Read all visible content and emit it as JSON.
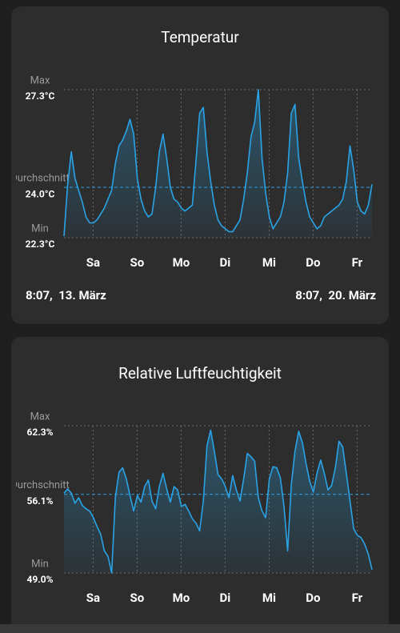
{
  "chart_data": [
    {
      "type": "line",
      "title": "Temperatur",
      "color": "#29a3e6",
      "start_label": "8:07,  13. März",
      "end_label": "8:07,  20. März",
      "xlim": [
        0,
        84
      ],
      "xticks": [
        {
          "value": 7.94,
          "label": "Sa"
        },
        {
          "value": 19.94,
          "label": "So"
        },
        {
          "value": 31.94,
          "label": "Mo"
        },
        {
          "value": 43.94,
          "label": "Di"
        },
        {
          "value": 55.94,
          "label": "Mi"
        },
        {
          "value": 67.94,
          "label": "Do"
        },
        {
          "value": 79.94,
          "label": "Fr"
        }
      ],
      "ylim": [
        22.3,
        27.3
      ],
      "yticks": [
        {
          "value": 22.3,
          "label": "22.3°C"
        },
        {
          "value": 24.0,
          "label": "24.0°C"
        },
        {
          "value": 27.3,
          "label": "27.3°C"
        }
      ],
      "ytick_names": [
        "Min",
        "Durchschnitt",
        "Max"
      ],
      "values": [
        22.35,
        24.1,
        25.2,
        24.3,
        23.9,
        23.5,
        23.0,
        22.8,
        22.8,
        22.9,
        23.1,
        23.3,
        23.6,
        23.9,
        24.8,
        25.4,
        25.6,
        25.9,
        26.3,
        25.8,
        24.3,
        23.6,
        23.2,
        23.0,
        23.1,
        24.0,
        25.2,
        25.8,
        25.0,
        24.0,
        23.6,
        23.5,
        23.3,
        23.2,
        23.3,
        23.4,
        24.9,
        26.5,
        26.7,
        25.2,
        24.2,
        23.4,
        22.9,
        22.7,
        22.6,
        22.5,
        22.5,
        22.7,
        22.9,
        23.6,
        24.5,
        25.7,
        26.2,
        27.3,
        25.0,
        23.8,
        23.0,
        22.6,
        22.8,
        23.0,
        23.5,
        24.5,
        26.5,
        26.8,
        25.0,
        24.2,
        23.5,
        23.0,
        22.8,
        22.6,
        22.7,
        23.0,
        23.1,
        23.2,
        23.3,
        23.4,
        23.6,
        24.2,
        25.4,
        24.6,
        23.5,
        23.2,
        23.1,
        23.4,
        24.1
      ]
    },
    {
      "type": "line",
      "title": "Relative Luftfeuchtigkeit",
      "color": "#29a3e6",
      "xlim": [
        0,
        84
      ],
      "xticks": [
        {
          "value": 7.94,
          "label": "Sa"
        },
        {
          "value": 19.94,
          "label": "So"
        },
        {
          "value": 31.94,
          "label": "Mo"
        },
        {
          "value": 43.94,
          "label": "Di"
        },
        {
          "value": 55.94,
          "label": "Mi"
        },
        {
          "value": 67.94,
          "label": "Do"
        },
        {
          "value": 79.94,
          "label": "Fr"
        }
      ],
      "ylim": [
        49.0,
        62.3
      ],
      "yticks": [
        {
          "value": 49.0,
          "label": "49.0%"
        },
        {
          "value": 56.1,
          "label": "56.1%"
        },
        {
          "value": 62.3,
          "label": "62.3%"
        }
      ],
      "ytick_names": [
        "Min",
        "Durchschnitt",
        "Max"
      ],
      "values": [
        56.2,
        56.6,
        56.2,
        55.3,
        55.8,
        55.1,
        54.8,
        54.6,
        54.0,
        53.2,
        52.5,
        51.0,
        50.5,
        49.0,
        55.8,
        58.1,
        58.5,
        57.5,
        56.0,
        54.6,
        56.0,
        55.4,
        56.8,
        57.4,
        55.5,
        54.8,
        56.8,
        58.0,
        56.6,
        55.4,
        56.8,
        56.5,
        55.0,
        55.2,
        54.6,
        53.9,
        53.5,
        52.8,
        55.5,
        60.5,
        61.9,
        60.0,
        57.9,
        57.5,
        56.8,
        55.8,
        57.8,
        56.5,
        55.5,
        57.5,
        59.8,
        59.5,
        59.1,
        55.8,
        54.6,
        54.0,
        57.5,
        58.6,
        58.5,
        57.6,
        55.0,
        51.0,
        57.0,
        60.0,
        61.8,
        60.8,
        58.9,
        57.3,
        56.3,
        58.0,
        59.2,
        58.0,
        56.5,
        56.9,
        58.5,
        60.9,
        60.4,
        58.0,
        55.5,
        53.0,
        52.4,
        52.2,
        51.6,
        50.7,
        49.3
      ]
    }
  ]
}
